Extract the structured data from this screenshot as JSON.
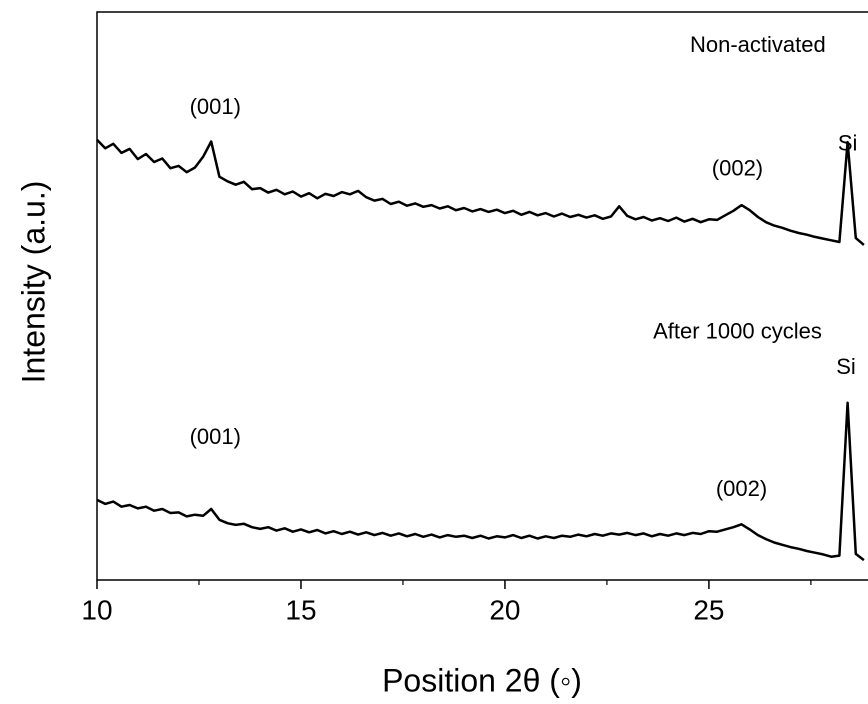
{
  "chart_data": {
    "type": "line",
    "x_label": "Position 2θ (◦)",
    "y_label": "Intensity (a.u.)",
    "xlim": [
      10,
      28.9
    ],
    "ylim": [
      0,
      100
    ],
    "xticks": [
      10,
      15,
      20,
      25
    ],
    "xminorticks": [
      12.5,
      17.5,
      22.5,
      27.5
    ],
    "x": [
      10.0,
      10.2,
      10.4,
      10.6,
      10.8,
      11.0,
      11.2,
      11.4,
      11.6,
      11.8,
      12.0,
      12.2,
      12.4,
      12.6,
      12.8,
      13.0,
      13.2,
      13.4,
      13.6,
      13.8,
      14.0,
      14.2,
      14.4,
      14.6,
      14.8,
      15.0,
      15.2,
      15.4,
      15.6,
      15.8,
      16.0,
      16.2,
      16.4,
      16.6,
      16.8,
      17.0,
      17.2,
      17.4,
      17.6,
      17.8,
      18.0,
      18.2,
      18.4,
      18.6,
      18.8,
      19.0,
      19.2,
      19.4,
      19.6,
      19.8,
      20.0,
      20.2,
      20.4,
      20.6,
      20.8,
      21.0,
      21.2,
      21.4,
      21.6,
      21.8,
      22.0,
      22.2,
      22.4,
      22.6,
      22.8,
      23.0,
      23.2,
      23.4,
      23.6,
      23.8,
      24.0,
      24.2,
      24.4,
      24.6,
      24.8,
      25.0,
      25.2,
      25.4,
      25.6,
      25.8,
      26.0,
      26.2,
      26.4,
      26.6,
      26.8,
      27.0,
      27.2,
      27.4,
      27.6,
      27.8,
      28.0,
      28.2,
      28.4,
      28.6,
      28.8
    ],
    "series": [
      {
        "color": "#000000",
        "values": [
          77.5,
          76.0,
          76.8,
          75.2,
          75.9,
          74.1,
          75.0,
          73.6,
          74.2,
          72.5,
          72.9,
          71.8,
          72.6,
          74.5,
          77.2,
          71.0,
          70.2,
          69.6,
          70.1,
          68.8,
          69.0,
          68.2,
          68.7,
          67.9,
          68.4,
          67.5,
          68.1,
          67.2,
          68.0,
          67.6,
          68.3,
          67.9,
          68.5,
          67.4,
          66.8,
          67.1,
          66.2,
          66.6,
          65.9,
          66.3,
          65.7,
          66.0,
          65.4,
          65.8,
          65.1,
          65.5,
          64.9,
          65.3,
          64.8,
          65.2,
          64.6,
          65.0,
          64.3,
          64.8,
          64.2,
          64.6,
          64.0,
          64.5,
          63.9,
          64.3,
          63.8,
          64.2,
          63.6,
          64.0,
          65.8,
          64.1,
          63.5,
          63.9,
          63.3,
          63.7,
          63.2,
          63.8,
          63.1,
          63.6,
          63.0,
          63.5,
          63.4,
          64.2,
          65.0,
          66.0,
          65.1,
          63.9,
          63.0,
          62.4,
          62.0,
          61.5,
          61.1,
          60.8,
          60.4,
          60.1,
          59.8,
          59.5,
          77.1,
          60.2,
          59.0
        ]
      },
      {
        "color": "#000000",
        "values": [
          14.1,
          13.4,
          13.8,
          12.9,
          13.2,
          12.6,
          12.9,
          12.2,
          12.5,
          11.8,
          11.9,
          11.2,
          11.5,
          11.3,
          12.5,
          10.6,
          10.0,
          9.7,
          9.9,
          9.3,
          9.0,
          9.3,
          8.7,
          9.1,
          8.5,
          8.9,
          8.4,
          8.8,
          8.2,
          8.6,
          8.1,
          8.5,
          8.0,
          8.4,
          7.9,
          8.3,
          7.8,
          8.2,
          7.7,
          8.1,
          7.6,
          8.0,
          7.5,
          7.9,
          7.6,
          7.8,
          7.4,
          7.8,
          7.3,
          7.7,
          7.5,
          7.9,
          7.4,
          7.8,
          7.3,
          7.7,
          7.4,
          7.8,
          7.6,
          8.0,
          7.7,
          8.1,
          7.8,
          8.2,
          8.0,
          8.3,
          7.9,
          8.2,
          7.7,
          8.1,
          7.8,
          8.2,
          7.9,
          8.3,
          8.1,
          8.6,
          8.5,
          8.9,
          9.3,
          9.8,
          8.9,
          7.9,
          7.2,
          6.6,
          6.2,
          5.8,
          5.5,
          5.1,
          4.8,
          4.5,
          4.1,
          4.3,
          31.2,
          4.6,
          3.5
        ]
      }
    ],
    "annotations": [
      {
        "text": "Non-activated",
        "x": 26.2,
        "y": 94
      },
      {
        "text": "(001)",
        "x": 12.9,
        "y": 83.1
      },
      {
        "text": "(002)",
        "x": 25.7,
        "y": 72.2
      },
      {
        "text": "Si",
        "x": 28.4,
        "y": 76.6
      },
      {
        "text": "After 1000 cycles",
        "x": 25.7,
        "y": 43.5
      },
      {
        "text": "Si",
        "x": 28.36,
        "y": 37.3
      },
      {
        "text": "(001)",
        "x": 12.9,
        "y": 25
      },
      {
        "text": "(002)",
        "x": 25.8,
        "y": 15.8
      }
    ]
  }
}
